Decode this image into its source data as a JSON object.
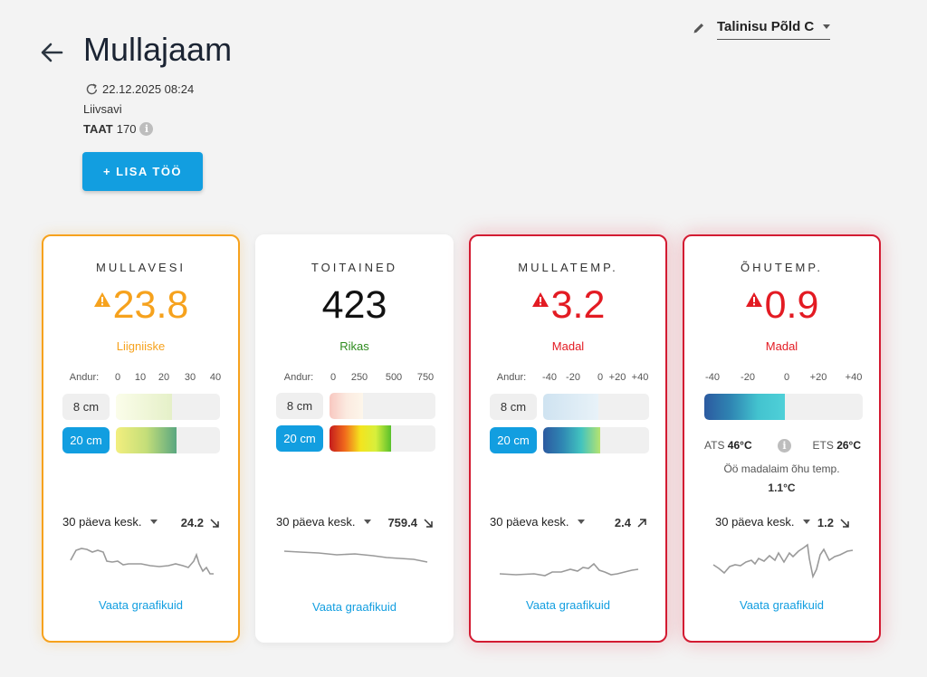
{
  "header": {
    "title": "Mullajaam",
    "timestamp": "22.12.2025 08:24",
    "soil_type": "Liivsavi",
    "taat_label": "TAAT",
    "taat_value": "170",
    "add_button": "+ LISA TÖÖ",
    "field_select": "Talinisu Põld C"
  },
  "colors": {
    "accent": "#129ee0",
    "warning": "#f6a21d",
    "danger": "#d31b32",
    "good": "#2e8b1e"
  },
  "cards": [
    {
      "title": "MULLAVESI",
      "value": "23.8",
      "status": "Liigniiske",
      "sensor_label": "Andur:",
      "ticks": [
        "0",
        "10",
        "20",
        "30",
        "40"
      ],
      "depths": [
        {
          "label": "8 cm",
          "level": 0.54
        },
        {
          "label": "20 cm",
          "level": 0.58
        }
      ],
      "avg_label": "30 päeva kesk.",
      "avg_value": "24.2",
      "trend": "down",
      "link": "Vaata graafikuid"
    },
    {
      "title": "TOITAINED",
      "value": "423",
      "status": "Rikas",
      "sensor_label": "Andur:",
      "ticks": [
        "0",
        "250",
        "500",
        "750"
      ],
      "depths": [
        {
          "label": "8 cm",
          "level": 0.32
        },
        {
          "label": "20 cm",
          "level": 0.58
        }
      ],
      "avg_label": "30 päeva kesk.",
      "avg_value": "759.4",
      "trend": "down",
      "link": "Vaata graafikuid"
    },
    {
      "title": "MULLATEMP.",
      "value": "3.2",
      "status": "Madal",
      "sensor_label": "Andur:",
      "ticks": [
        "-40",
        "-20",
        "0",
        "+20",
        "+40"
      ],
      "depths": [
        {
          "label": "8 cm",
          "level": 0.52
        },
        {
          "label": "20 cm",
          "level": 0.54
        }
      ],
      "avg_label": "30 päeva kesk.",
      "avg_value": "2.4",
      "trend": "up",
      "link": "Vaata graafikuid"
    },
    {
      "title": "ÕHUTEMP.",
      "value": "0.9",
      "status": "Madal",
      "ticks": [
        "-40",
        "-20",
        "0",
        "+20",
        "+40"
      ],
      "air_level": 0.51,
      "ats_label": "ATS",
      "ats_value": "46°C",
      "ets_label": "ETS",
      "ets_value": "26°C",
      "night_label": "Öö madalaim õhu temp.",
      "night_value": "1.1°C",
      "avg_label": "30 päeva kesk.",
      "avg_value": "1.2",
      "trend": "down",
      "link": "Vaata graafikuid"
    }
  ]
}
